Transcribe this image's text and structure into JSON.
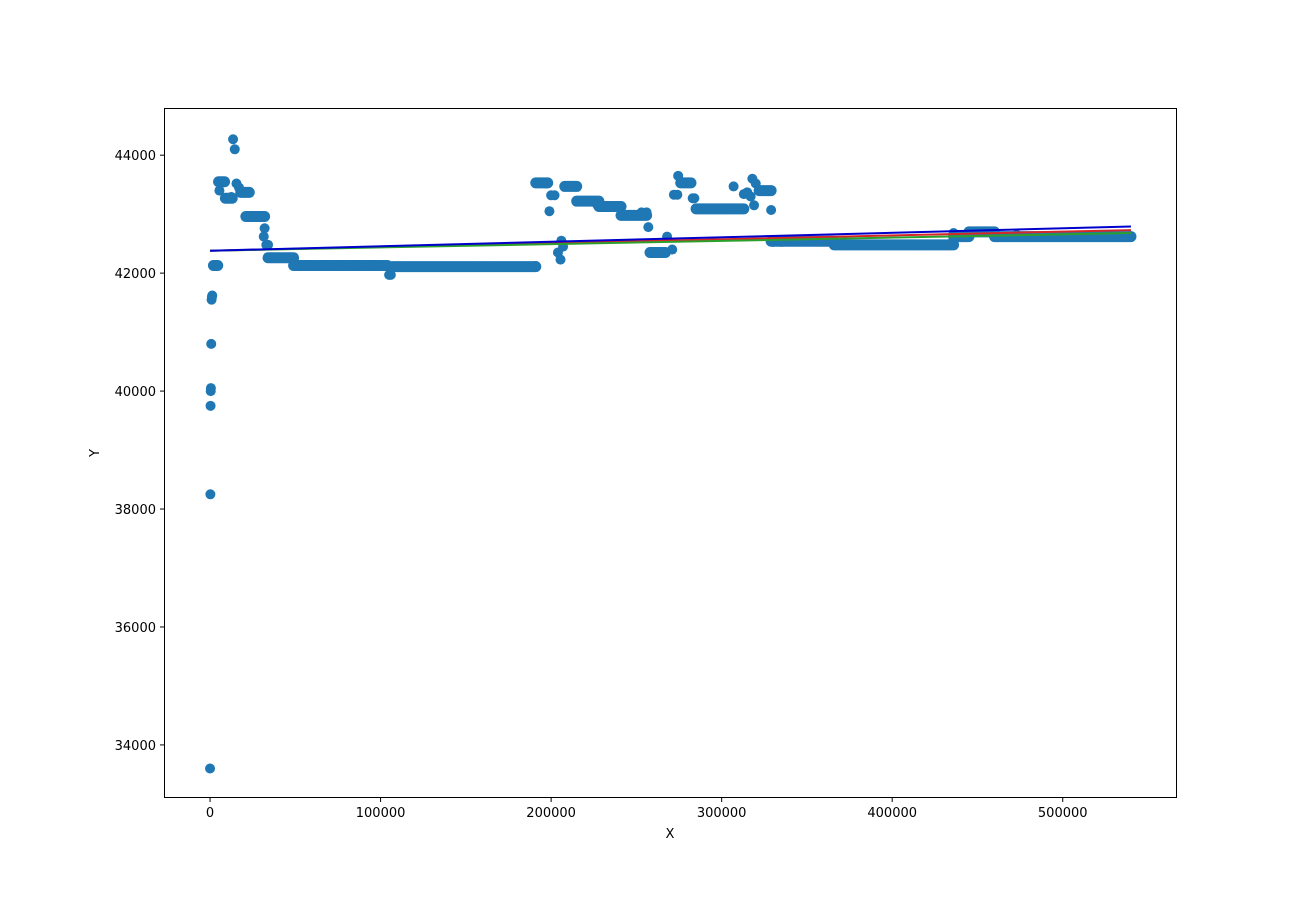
{
  "chart_data": {
    "type": "scatter",
    "title": "",
    "xlabel": "X",
    "ylabel": "Y",
    "xlim": [
      -27000,
      567000
    ],
    "ylim": [
      33100,
      44800
    ],
    "xticks": [
      0,
      100000,
      200000,
      300000,
      400000,
      500000
    ],
    "yticks": [
      34000,
      36000,
      38000,
      40000,
      42000,
      44000
    ],
    "grid": false,
    "legend": "none",
    "series": [
      {
        "kind": "scatter",
        "color": "#1f77b4",
        "points": [
          [
            0,
            33600
          ],
          [
            200,
            38250
          ],
          [
            300,
            39750
          ],
          [
            400,
            40000
          ],
          [
            500,
            40050
          ],
          [
            700,
            40800
          ],
          [
            900,
            41550
          ],
          [
            1100,
            41600
          ],
          [
            1300,
            41620
          ],
          [
            2500,
            42130
          ],
          [
            3500,
            42130
          ],
          [
            4500,
            42130
          ],
          [
            5500,
            43400
          ],
          [
            6500,
            43550
          ],
          [
            7500,
            43550
          ],
          [
            8500,
            43550
          ],
          [
            9500,
            43270
          ],
          [
            10500,
            43270
          ],
          [
            11500,
            43270
          ],
          [
            12500,
            43290
          ],
          [
            13500,
            44270
          ],
          [
            14500,
            44100
          ],
          [
            15500,
            43520
          ],
          [
            17000,
            43450
          ],
          [
            19000,
            43370
          ],
          [
            21000,
            43370
          ],
          [
            23000,
            43370
          ],
          [
            22000,
            42960
          ],
          [
            26000,
            42960
          ],
          [
            30000,
            42960
          ],
          [
            32000,
            42760
          ],
          [
            31500,
            42620
          ],
          [
            33000,
            42480
          ],
          [
            34000,
            42480
          ],
          [
            35000,
            42260
          ],
          [
            38000,
            42260
          ],
          [
            42000,
            42260
          ],
          [
            46000,
            42260
          ],
          [
            48000,
            42260
          ],
          [
            49000,
            42130
          ],
          [
            55000,
            42130
          ],
          [
            65000,
            42130
          ],
          [
            75000,
            42130
          ],
          [
            85000,
            42130
          ],
          [
            95000,
            42130
          ],
          [
            104000,
            42130
          ],
          [
            105000,
            41970
          ],
          [
            106000,
            41970
          ],
          [
            107000,
            42110
          ],
          [
            115000,
            42110
          ],
          [
            125000,
            42110
          ],
          [
            135000,
            42110
          ],
          [
            145000,
            42110
          ],
          [
            155000,
            42110
          ],
          [
            165000,
            42110
          ],
          [
            175000,
            42110
          ],
          [
            185000,
            42110
          ],
          [
            191000,
            42120
          ],
          [
            191000,
            43530
          ],
          [
            194000,
            43530
          ],
          [
            197000,
            43520
          ],
          [
            199000,
            43050
          ],
          [
            200000,
            43320
          ],
          [
            202000,
            43320
          ],
          [
            204000,
            42350
          ],
          [
            205500,
            42230
          ],
          [
            206000,
            42550
          ],
          [
            207000,
            42450
          ],
          [
            208000,
            43470
          ],
          [
            211000,
            43470
          ],
          [
            214000,
            43470
          ],
          [
            216000,
            43220
          ],
          [
            220000,
            43220
          ],
          [
            224000,
            43220
          ],
          [
            227000,
            43160
          ],
          [
            230000,
            43130
          ],
          [
            234000,
            43130
          ],
          [
            238000,
            43130
          ],
          [
            240000,
            43130
          ],
          [
            242000,
            42980
          ],
          [
            246000,
            42980
          ],
          [
            250000,
            42980
          ],
          [
            253000,
            43030
          ],
          [
            256000,
            43030
          ],
          [
            257000,
            42780
          ],
          [
            258000,
            42350
          ],
          [
            262000,
            42350
          ],
          [
            266000,
            42350
          ],
          [
            268000,
            42620
          ],
          [
            271000,
            42400
          ],
          [
            272000,
            43330
          ],
          [
            274000,
            43330
          ],
          [
            274500,
            43650
          ],
          [
            276000,
            43530
          ],
          [
            279000,
            43530
          ],
          [
            282000,
            43530
          ],
          [
            283000,
            43270
          ],
          [
            284000,
            43270
          ],
          [
            285000,
            43090
          ],
          [
            290000,
            43090
          ],
          [
            295000,
            43090
          ],
          [
            300000,
            43090
          ],
          [
            305000,
            43090
          ],
          [
            307000,
            43470
          ],
          [
            309000,
            43090
          ],
          [
            312000,
            43090
          ],
          [
            313000,
            43340
          ],
          [
            315000,
            43370
          ],
          [
            317000,
            43300
          ],
          [
            318000,
            43600
          ],
          [
            319000,
            43150
          ],
          [
            320000,
            43520
          ],
          [
            322000,
            43400
          ],
          [
            324000,
            43400
          ],
          [
            327000,
            43400
          ],
          [
            329000,
            43070
          ],
          [
            330000,
            42530
          ],
          [
            335000,
            42530
          ],
          [
            340000,
            42540
          ],
          [
            350000,
            42540
          ],
          [
            360000,
            42540
          ],
          [
            367000,
            42480
          ],
          [
            375000,
            42480
          ],
          [
            385000,
            42480
          ],
          [
            395000,
            42480
          ],
          [
            405000,
            42480
          ],
          [
            415000,
            42480
          ],
          [
            425000,
            42480
          ],
          [
            433000,
            42490
          ],
          [
            436000,
            42680
          ],
          [
            437000,
            42620
          ],
          [
            440000,
            42620
          ],
          [
            443000,
            42620
          ],
          [
            446000,
            42700
          ],
          [
            450000,
            42700
          ],
          [
            455000,
            42700
          ],
          [
            459000,
            42700
          ],
          [
            461000,
            42620
          ],
          [
            467000,
            42620
          ],
          [
            473000,
            42650
          ],
          [
            480000,
            42620
          ],
          [
            490000,
            42620
          ],
          [
            500000,
            42620
          ],
          [
            510000,
            42620
          ],
          [
            520000,
            42620
          ],
          [
            530000,
            42620
          ],
          [
            539000,
            42630
          ]
        ],
        "segments": [
          [
            2000,
            4500,
            42130
          ],
          [
            5000,
            8500,
            43550
          ],
          [
            9000,
            13000,
            43270
          ],
          [
            18000,
            23000,
            43370
          ],
          [
            21000,
            32000,
            42960
          ],
          [
            34000,
            49000,
            42260
          ],
          [
            49000,
            104000,
            42130
          ],
          [
            107000,
            191000,
            42110
          ],
          [
            191000,
            198000,
            43530
          ],
          [
            208000,
            215000,
            43470
          ],
          [
            215000,
            228000,
            43220
          ],
          [
            228000,
            241000,
            43130
          ],
          [
            241000,
            256000,
            42980
          ],
          [
            258000,
            267000,
            42350
          ],
          [
            276000,
            282000,
            43530
          ],
          [
            285000,
            313000,
            43090
          ],
          [
            322000,
            329000,
            43400
          ],
          [
            329000,
            366000,
            42540
          ],
          [
            366000,
            436000,
            42480
          ],
          [
            436000,
            445000,
            42620
          ],
          [
            445000,
            460000,
            42700
          ],
          [
            460000,
            540000,
            42620
          ]
        ]
      },
      {
        "kind": "line",
        "color": "#d62728",
        "x": [
          0,
          540000
        ],
        "y": [
          42380,
          42730
        ]
      },
      {
        "kind": "line",
        "color": "#2ca02c",
        "x": [
          0,
          540000
        ],
        "y": [
          42380,
          42680
        ]
      },
      {
        "kind": "line",
        "color": "#0000cc",
        "x": [
          0,
          540000
        ],
        "y": [
          42380,
          42790
        ]
      }
    ]
  }
}
